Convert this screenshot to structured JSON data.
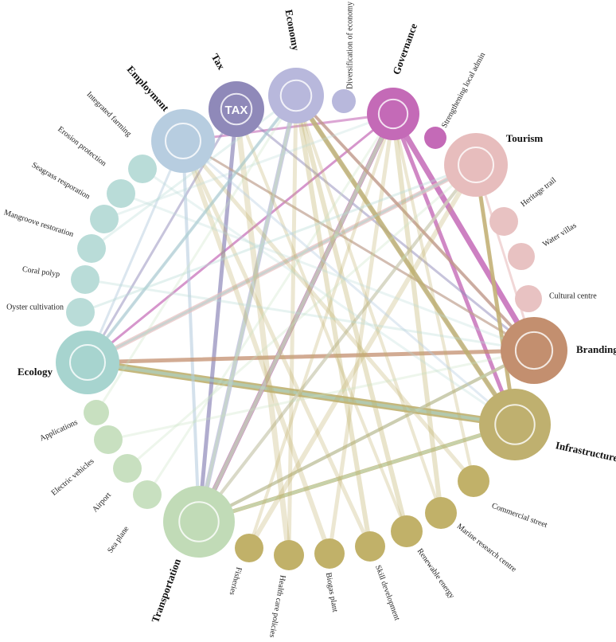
{
  "nodes": [
    {
      "label": "Employment"
    },
    {
      "label": "Tax",
      "icon_text": "TAX"
    },
    {
      "label": "Economy"
    },
    {
      "label": "Diversification of economy"
    },
    {
      "label": "Governance"
    },
    {
      "label": "Strengthening local admin"
    },
    {
      "label": "Tourism"
    },
    {
      "label": "Heritage trail"
    },
    {
      "label": "Water villas"
    },
    {
      "label": "Cultural centre"
    },
    {
      "label": "Branding"
    },
    {
      "label": "Infrastructure"
    },
    {
      "label": "Commercial street"
    },
    {
      "label": "Marine research centre"
    },
    {
      "label": "Renewable energy"
    },
    {
      "label": "Skill development"
    },
    {
      "label": "Biogas plant"
    },
    {
      "label": "Health care policies"
    },
    {
      "label": "Fisheries"
    },
    {
      "label": "Transportation"
    },
    {
      "label": "Sea plane"
    },
    {
      "label": "Airport"
    },
    {
      "label": "Electric vehicles"
    },
    {
      "label": "Applications"
    },
    {
      "label": "Ecology"
    },
    {
      "label": "Oyster cultivation"
    },
    {
      "label": "Coral polyp"
    },
    {
      "label": "Mangroove restoration"
    },
    {
      "label": "Seagrass resporation"
    },
    {
      "label": "Erosion protection"
    },
    {
      "label": "Integrated farming"
    }
  ]
}
